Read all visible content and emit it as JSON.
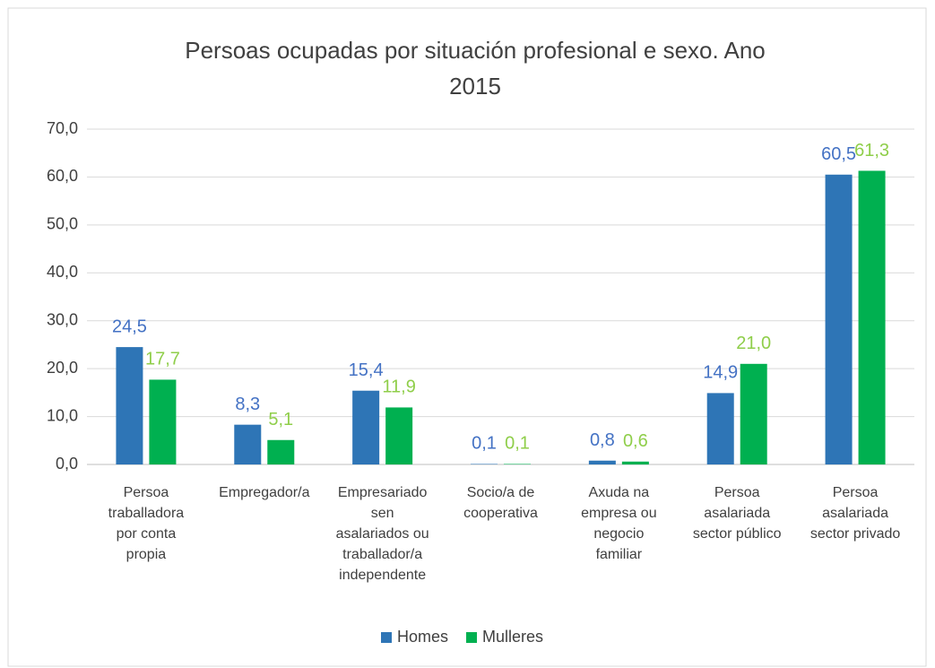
{
  "chart_data": {
    "type": "bar",
    "title": "Persoas ocupadas por situación profesional e sexo. Ano 2015",
    "categories": [
      "Persoa traballadora por conta propia",
      "Empregador/a",
      "Empresariado sen asalariados ou traballador/a independente",
      "Socio/a de cooperativa",
      "Axuda na empresa ou negocio familiar",
      "Persoa asalariada sector público",
      "Persoa asalariada sector privado"
    ],
    "series": [
      {
        "name": "Homes",
        "color": "#2e75b6",
        "label_color": "#4472c4",
        "values": [
          24.5,
          8.3,
          15.4,
          0.1,
          0.8,
          14.9,
          60.5
        ],
        "value_labels": [
          "24,5",
          "8,3",
          "15,4",
          "0,1",
          "0,8",
          "14,9",
          "60,5"
        ]
      },
      {
        "name": "Mulleres",
        "color": "#00b050",
        "label_color": "#8fce4a",
        "values": [
          17.7,
          5.1,
          11.9,
          0.1,
          0.6,
          21.0,
          61.3
        ],
        "value_labels": [
          "17,7",
          "5,1",
          "11,9",
          "0,1",
          "0,6",
          "21,0",
          "61,3"
        ]
      }
    ],
    "ylim": [
      0,
      70
    ],
    "yticks": [
      {
        "value": 0,
        "label": "0,0"
      },
      {
        "value": 10,
        "label": "10,0"
      },
      {
        "value": 20,
        "label": "20,0"
      },
      {
        "value": 30,
        "label": "30,0"
      },
      {
        "value": 40,
        "label": "40,0"
      },
      {
        "value": 50,
        "label": "50,0"
      },
      {
        "value": 60,
        "label": "60,0"
      },
      {
        "value": 70,
        "label": "70,0"
      }
    ],
    "grid": true,
    "legend": "bottom"
  }
}
